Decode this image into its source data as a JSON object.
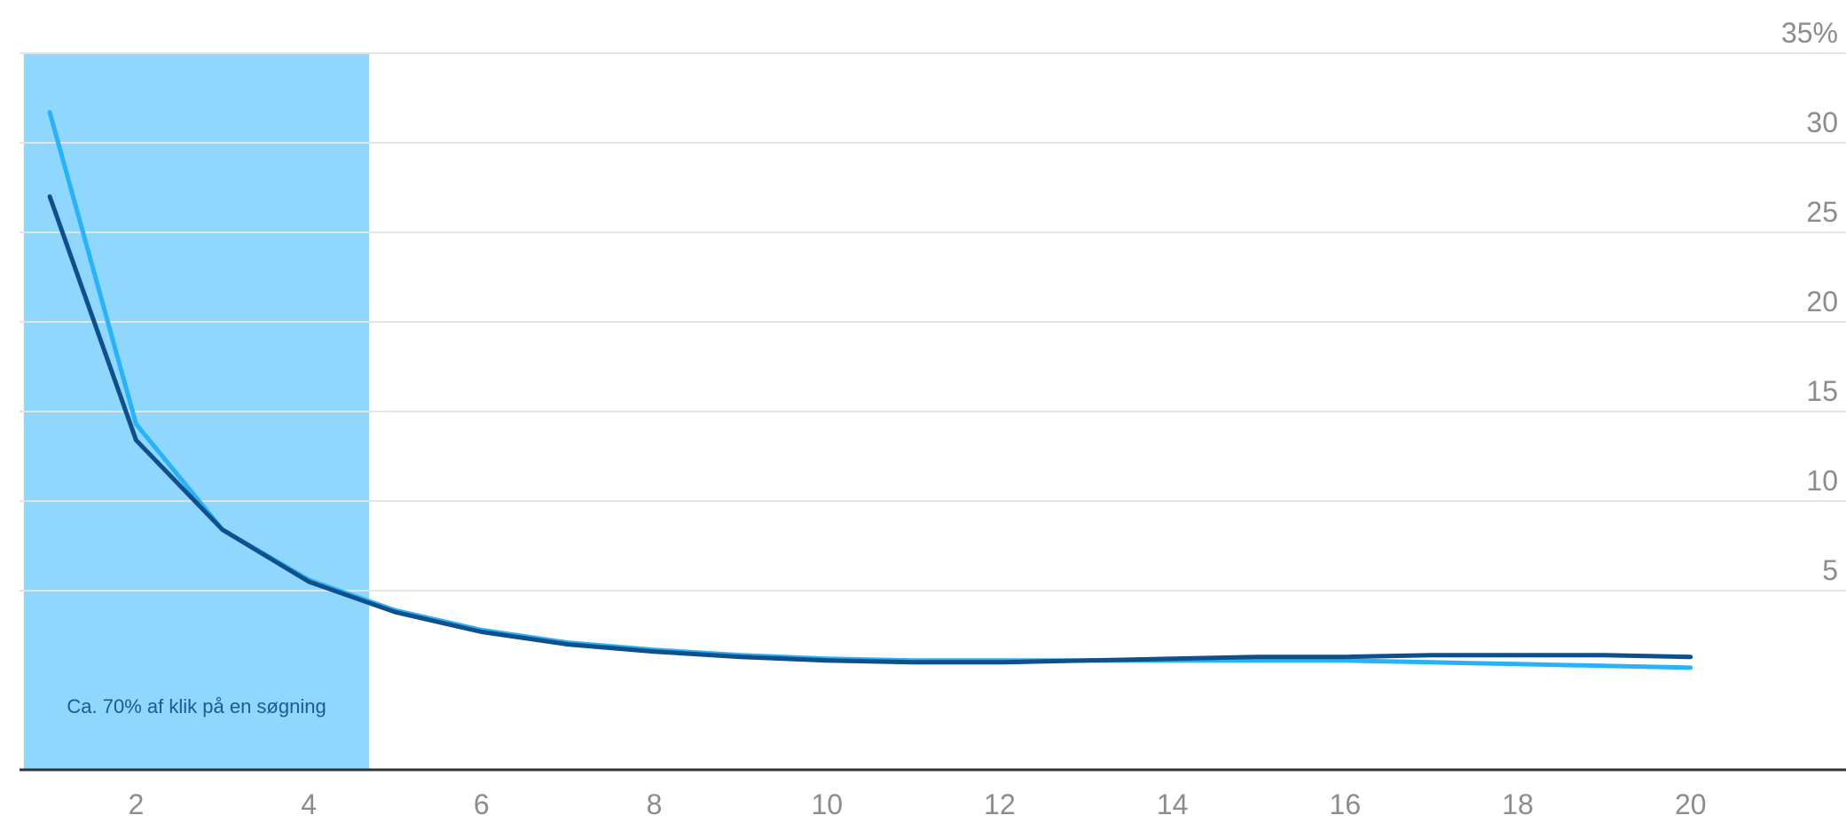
{
  "chart_data": {
    "type": "line",
    "title": "",
    "xlabel": "",
    "ylabel": "",
    "x": [
      1,
      2,
      3,
      4,
      5,
      6,
      7,
      8,
      9,
      10,
      11,
      12,
      13,
      14,
      15,
      16,
      17,
      18,
      19,
      20
    ],
    "xlim": [
      0.65,
      21.8
    ],
    "ylim": [
      -5,
      35
    ],
    "x_ticks": [
      2,
      4,
      6,
      8,
      10,
      12,
      14,
      16,
      18,
      20
    ],
    "x_tick_labels": [
      "2",
      "4",
      "6",
      "8",
      "10",
      "12",
      "14",
      "16",
      "18",
      "20"
    ],
    "y_ticks": [
      5,
      10,
      15,
      20,
      25,
      30,
      35
    ],
    "y_tick_labels": [
      "5",
      "10",
      "15",
      "20",
      "25",
      "30",
      "35%"
    ],
    "y_axis_position": "right",
    "grid": true,
    "legend": "none",
    "series": [
      {
        "color": "#29b2f7",
        "values": [
          31.7,
          14.3,
          8.4,
          5.6,
          3.9,
          2.8,
          2.1,
          1.7,
          1.4,
          1.2,
          1.1,
          1.1,
          1.1,
          1.1,
          1.1,
          1.1,
          1.0,
          0.9,
          0.8,
          0.7
        ]
      },
      {
        "color": "#0e4f8c",
        "values": [
          27.0,
          13.4,
          8.4,
          5.5,
          3.8,
          2.7,
          2.0,
          1.6,
          1.3,
          1.1,
          1.0,
          1.0,
          1.1,
          1.2,
          1.3,
          1.3,
          1.4,
          1.4,
          1.4,
          1.3
        ]
      }
    ],
    "highlight": {
      "x_start": 0.7,
      "x_end": 4.7,
      "color": "#8fd7fd",
      "label": "Ca. 70% af klik på en søgning"
    },
    "colors": {
      "gridline": "#e4e4e4",
      "baseline": "#333333",
      "tick_text": "#8c8c8c",
      "annotation_text": "#1a5a99"
    }
  }
}
